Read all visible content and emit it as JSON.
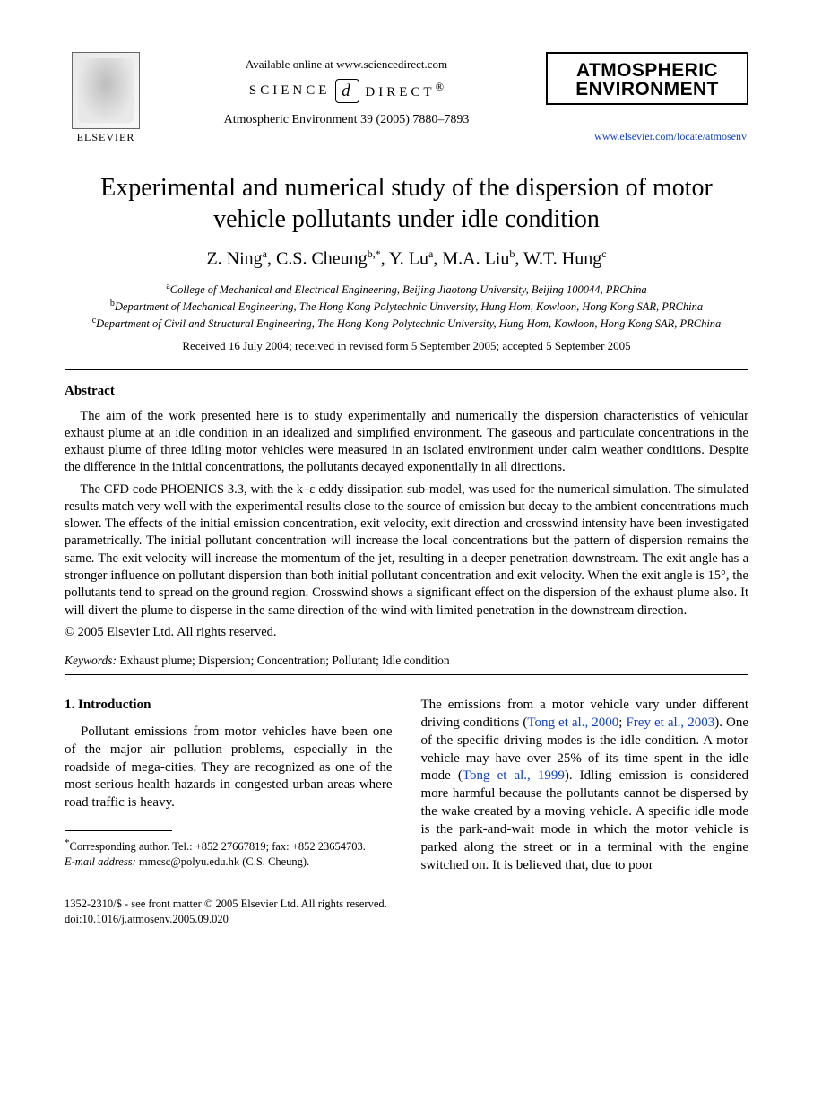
{
  "header": {
    "available_text": "Available online at www.sciencedirect.com",
    "sd_left": "SCIENCE",
    "sd_right": "DIRECT",
    "sd_reg": "®",
    "citation": "Atmospheric Environment 39 (2005) 7880–7893",
    "elsevier_label": "ELSEVIER",
    "journal_line1": "ATMOSPHERIC",
    "journal_line2": "ENVIRONMENT",
    "journal_url": "www.elsevier.com/locate/atmosenv"
  },
  "title": "Experimental and numerical study of the dispersion of motor vehicle pollutants under idle condition",
  "authors_html": "Z. Ning<sup>a</sup>, C.S. Cheung<sup>b,*</sup>, Y. Lu<sup>a</sup>, M.A. Liu<sup>b</sup>, W.T. Hung<sup>c</sup>",
  "affiliations": [
    {
      "sup": "a",
      "text": "College of Mechanical and Electrical Engineering, Beijing Jiaotong University, Beijing 100044, PRChina"
    },
    {
      "sup": "b",
      "text": "Department of Mechanical Engineering, The Hong Kong Polytechnic University, Hung Hom, Kowloon, Hong Kong SAR, PRChina"
    },
    {
      "sup": "c",
      "text": "Department of Civil and Structural Engineering, The Hong Kong Polytechnic University, Hung Hom, Kowloon, Hong Kong SAR, PRChina"
    }
  ],
  "dates": "Received 16 July 2004; received in revised form 5 September 2005; accepted 5 September 2005",
  "abstract_heading": "Abstract",
  "abstract_paras": [
    "The aim of the work presented here is to study experimentally and numerically the dispersion characteristics of vehicular exhaust plume at an idle condition in an idealized and simplified environment. The gaseous and particulate concentrations in the exhaust plume of three idling motor vehicles were measured in an isolated environment under calm weather conditions. Despite the difference in the initial concentrations, the pollutants decayed exponentially in all directions.",
    "The CFD code PHOENICS 3.3, with the k–ε eddy dissipation sub-model, was used for the numerical simulation. The simulated results match very well with the experimental results close to the source of emission but decay to the ambient concentrations much slower. The effects of the initial emission concentration, exit velocity, exit direction and crosswind intensity have been investigated parametrically. The initial pollutant concentration will increase the local concentrations but the pattern of dispersion remains the same. The exit velocity will increase the momentum of the jet, resulting in a deeper penetration downstream. The exit angle has a stronger influence on pollutant dispersion than both initial pollutant concentration and exit velocity. When the exit angle is 15°, the pollutants tend to spread on the ground region. Crosswind shows a significant effect on the dispersion of the exhaust plume also. It will divert the plume to disperse in the same direction of the wind with limited penetration in the downstream direction."
  ],
  "copyright": "© 2005 Elsevier Ltd. All rights reserved.",
  "keywords_label": "Keywords:",
  "keywords": "Exhaust plume; Dispersion; Concentration; Pollutant; Idle condition",
  "intro_heading": "1.  Introduction",
  "intro_left": "Pollutant emissions from motor vehicles have been one of the major air pollution problems, especially in the roadside of mega-cities. They are recognized as one of the most serious health hazards in congested urban areas where road traffic is heavy.",
  "intro_right_pre": "The emissions from a motor vehicle vary under different driving conditions (",
  "intro_cite1": "Tong et al., 2000",
  "intro_sep1": "; ",
  "intro_cite2": "Frey et al., 2003",
  "intro_right_mid1": "). One of the specific driving modes is the idle condition. A motor vehicle may have over 25% of its time spent in the idle mode (",
  "intro_cite3": "Tong et al., 1999",
  "intro_right_post": "). Idling emission is considered more harmful because the pollutants cannot be dispersed by the wake created by a moving vehicle. A specific idle mode is the park-and-wait mode in which the motor vehicle is parked along the street or in a terminal with the engine switched on. It is believed that, due to poor",
  "footnote_corr_label": "*",
  "footnote_corr": "Corresponding author. Tel.: +852 27667819; fax: +852 23654703.",
  "footnote_email_label": "E-mail address:",
  "footnote_email": "mmcsc@polyu.edu.hk (C.S. Cheung).",
  "footer_line1": "1352-2310/$ - see front matter © 2005 Elsevier Ltd. All rights reserved.",
  "footer_line2": "doi:10.1016/j.atmosenv.2005.09.020",
  "colors": {
    "link": "#1040c0",
    "text": "#000000",
    "bg": "#ffffff"
  }
}
